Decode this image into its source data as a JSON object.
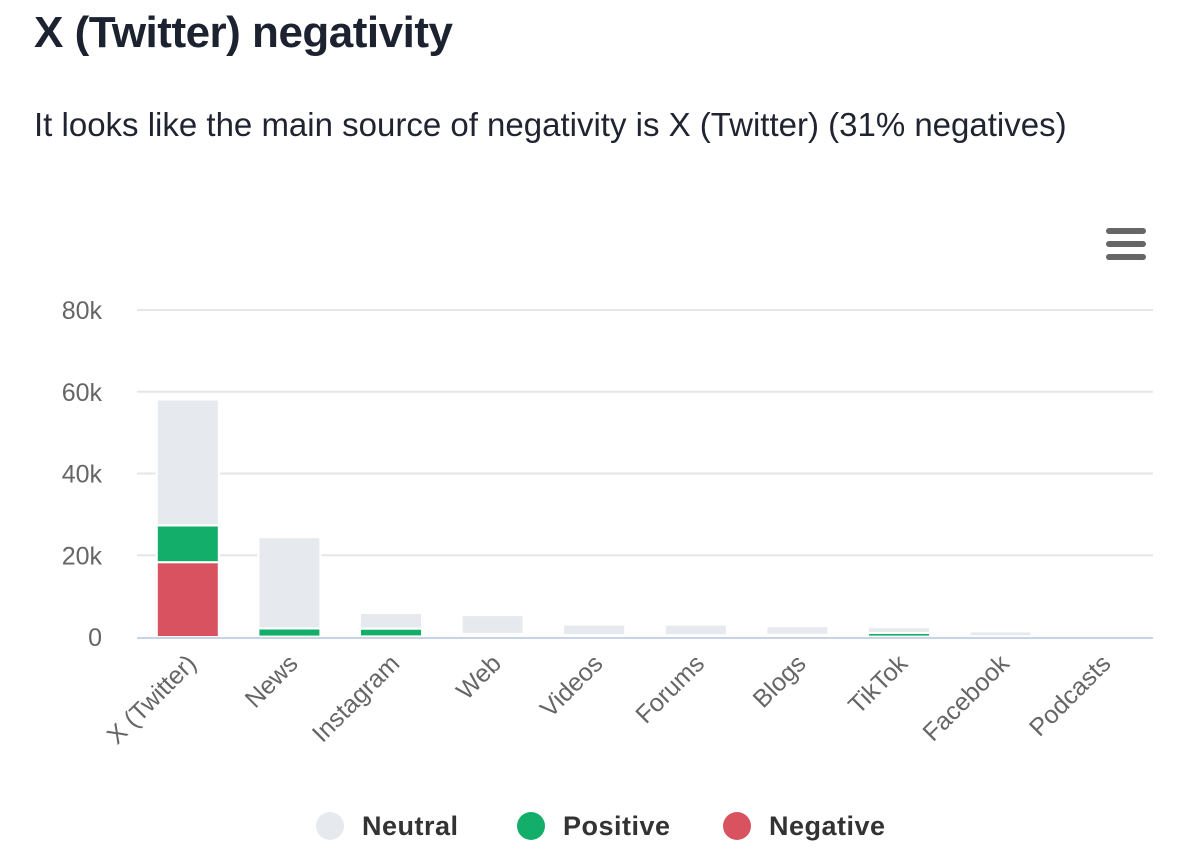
{
  "header": {
    "title": "X (Twitter) negativity",
    "subtitle": "It looks like the main source of negativity is X (Twitter) (31% negatives)"
  },
  "menu": {
    "icon": "hamburger-menu-icon"
  },
  "colors": {
    "neutral": "#e6e9ed",
    "positive": "#14ae6b",
    "negative": "#d9525f",
    "grid": "#e6e6e6",
    "axis_line": "#c8d3e6",
    "label": "#666666"
  },
  "chart_data": {
    "type": "bar",
    "stacked": true,
    "title": "X (Twitter) negativity",
    "subtitle": "It looks like the main source of negativity is X (Twitter) (31% negatives)",
    "categories": [
      "X (Twitter)",
      "News",
      "Instagram",
      "Web",
      "Videos",
      "Forums",
      "Blogs",
      "TikTok",
      "Facebook",
      "Podcasts"
    ],
    "series": [
      {
        "name": "Negative",
        "color": "#d9525f",
        "values": [
          18300,
          100,
          150,
          250,
          150,
          150,
          250,
          100,
          80,
          10
        ]
      },
      {
        "name": "Positive",
        "color": "#14ae6b",
        "values": [
          9000,
          2000,
          1900,
          500,
          300,
          250,
          300,
          900,
          100,
          10
        ]
      },
      {
        "name": "Neutral",
        "color": "#e6e9ed",
        "values": [
          30800,
          22300,
          3800,
          4600,
          2600,
          2600,
          2100,
          1400,
          1200,
          200
        ]
      }
    ],
    "legend_order": [
      "Neutral",
      "Positive",
      "Negative"
    ],
    "y_ticks": [
      0,
      20000,
      40000,
      60000,
      80000
    ],
    "y_tick_labels": [
      "0",
      "20k",
      "40k",
      "60k",
      "80k"
    ],
    "ylim": [
      0,
      80000
    ],
    "xlabel": "",
    "ylabel": "",
    "grid": true,
    "legend_position": "bottom-center"
  }
}
